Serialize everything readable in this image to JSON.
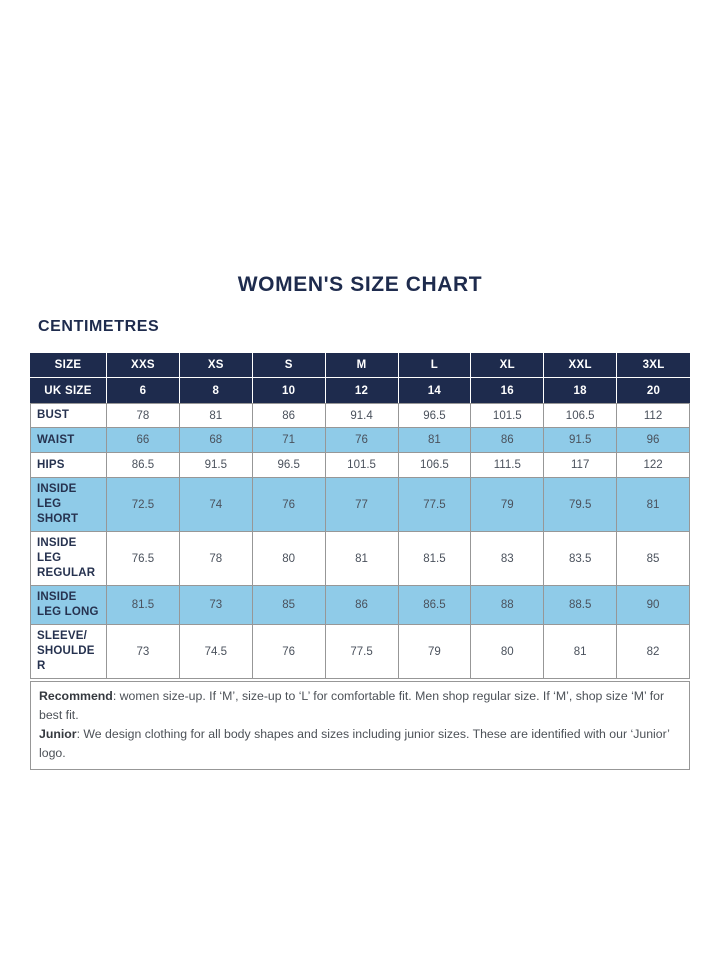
{
  "page": {
    "title": "WOMEN'S SIZE CHART",
    "unit_label": "CENTIMETRES"
  },
  "colors": {
    "navy": "#1E2B4D",
    "header_bg": "#1E2B4D",
    "row_highlight": "#8FCBE8",
    "border": "#979797"
  },
  "chart_data": {
    "type": "table",
    "title": "WOMEN'S SIZE CHART",
    "unit": "CENTIMETRES",
    "header_row1": [
      "SIZE",
      "XXS",
      "XS",
      "S",
      "M",
      "L",
      "XL",
      "XXL",
      "3XL"
    ],
    "header_row2": [
      "UK SIZE",
      "6",
      "8",
      "10",
      "12",
      "14",
      "16",
      "18",
      "20"
    ],
    "rows": [
      {
        "label": "BUST",
        "highlight": false,
        "values": [
          "78",
          "81",
          "86",
          "91.4",
          "96.5",
          "101.5",
          "106.5",
          "112"
        ]
      },
      {
        "label": "WAIST",
        "highlight": true,
        "values": [
          "66",
          "68",
          "71",
          "76",
          "81",
          "86",
          "91.5",
          "96"
        ]
      },
      {
        "label": "HIPS",
        "highlight": false,
        "values": [
          "86.5",
          "91.5",
          "96.5",
          "101.5",
          "106.5",
          "111.5",
          "117",
          "122"
        ]
      },
      {
        "label": "INSIDE LEG SHORT",
        "highlight": true,
        "values": [
          "72.5",
          "74",
          "76",
          "77",
          "77.5",
          "79",
          "79.5",
          "81"
        ]
      },
      {
        "label": "INSIDE LEG REGULAR",
        "highlight": false,
        "values": [
          "76.5",
          "78",
          "80",
          "81",
          "81.5",
          "83",
          "83.5",
          "85"
        ]
      },
      {
        "label": "INSIDE LEG LONG",
        "highlight": true,
        "values": [
          "81.5",
          "73",
          "85",
          "86",
          "86.5",
          "88",
          "88.5",
          "90"
        ]
      },
      {
        "label": "SLEEVE/SHOULDER",
        "highlight": false,
        "values": [
          "73",
          "74.5",
          "76",
          "77.5",
          "79",
          "80",
          "81",
          "82"
        ]
      }
    ],
    "footnotes": [
      {
        "label": "Recommend",
        "text": ": women size-up. If ‘M’, size-up to ‘L’ for comfortable fit. Men shop regular size. If ‘M’, shop size ‘M’ for best fit."
      },
      {
        "label": "Junior",
        "text": ": We design clothing for all body shapes and sizes including junior sizes. These are identified with our ‘Junior’ logo."
      }
    ]
  }
}
